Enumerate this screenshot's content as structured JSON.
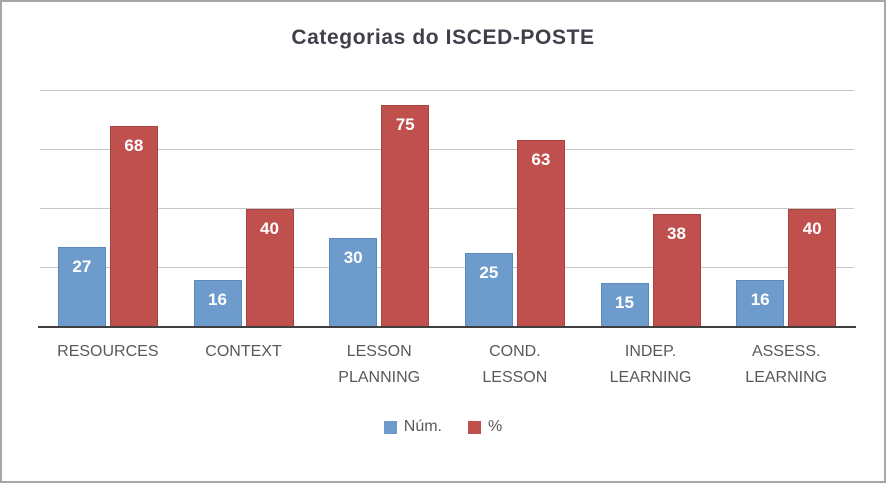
{
  "chart_data": {
    "type": "bar",
    "title": "Categorias do ISCED-POSTE",
    "categories": [
      "RESOURCES",
      "CONTEXT",
      "LESSON\nPLANNING",
      "COND.\nLESSON",
      "INDEP.\nLEARNING",
      "ASSESS.\nLEARNING"
    ],
    "series": [
      {
        "name": "Núm.",
        "color": "#6d9bcb",
        "border_color": "#5d88b8",
        "values": [
          27,
          16,
          30,
          25,
          15,
          16
        ]
      },
      {
        "name": "%",
        "color": "#c0504d",
        "border_color": "#a8423f",
        "values": [
          68,
          40,
          75,
          63,
          38,
          40
        ]
      }
    ],
    "ylim": [
      0,
      80
    ],
    "grid_step": 20,
    "grid": true,
    "legend_position": "bottom",
    "xlabel": "",
    "ylabel": "",
    "colors": {
      "background": "#ffffff",
      "border": "#a6a6a6",
      "grid": "#c6c6c6",
      "baseline": "#3f3f3f",
      "title": "#3f4049",
      "tick_label": "#595959",
      "value_label": "#ffffff"
    }
  }
}
